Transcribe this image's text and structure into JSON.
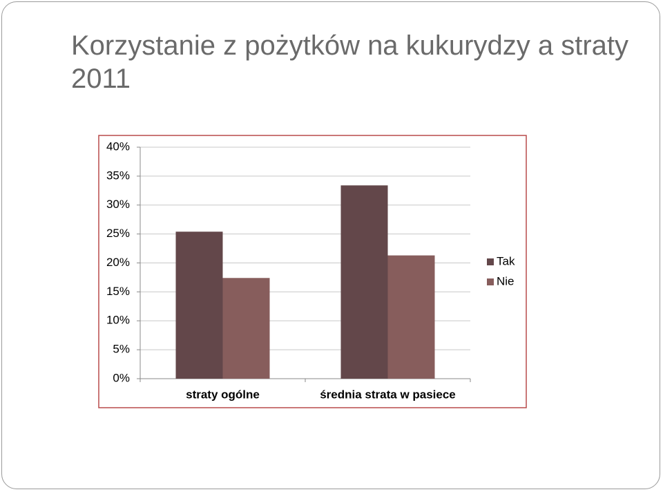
{
  "chart_data": {
    "type": "bar",
    "title": "Korzystanie z pożytków na kukurydzy a straty 2011",
    "categories": [
      "straty ogólne",
      "średnia strata w pasiece"
    ],
    "series": [
      {
        "name": "Tak",
        "color": "#63474a",
        "values": [
          25.4,
          33.4
        ]
      },
      {
        "name": "Nie",
        "color": "#875d5c",
        "values": [
          17.4,
          21.3
        ]
      }
    ],
    "ylim": [
      0,
      40
    ],
    "yticks": [
      {
        "value": 0,
        "label": "0%"
      },
      {
        "value": 5,
        "label": "5%"
      },
      {
        "value": 10,
        "label": "10%"
      },
      {
        "value": 15,
        "label": "15%"
      },
      {
        "value": 20,
        "label": "20%"
      },
      {
        "value": 25,
        "label": "25%"
      },
      {
        "value": 30,
        "label": "30%"
      },
      {
        "value": 35,
        "label": "35%"
      },
      {
        "value": 40,
        "label": "40%"
      }
    ],
    "grid": true,
    "legend": "right"
  }
}
